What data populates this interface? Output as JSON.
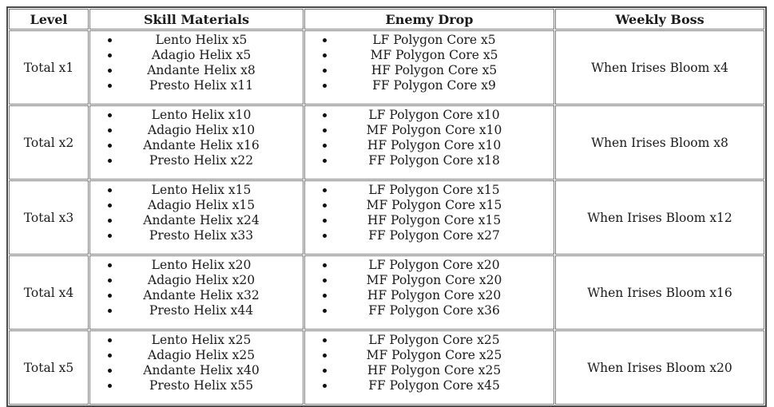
{
  "colors": {
    "background": "#ffffff",
    "text": "#1b1b1b",
    "border_outer": "#4a4a4a",
    "border_inner": "#7d7d7d",
    "bullet": "#111111"
  },
  "table": {
    "headers": [
      "Level",
      "Skill Materials",
      "Enemy Drop",
      "Weekly Boss"
    ],
    "rows": [
      {
        "level": "Total x1",
        "skill_materials": [
          "Lento Helix x5",
          "Adagio Helix x5",
          "Andante Helix x8",
          "Presto Helix x11"
        ],
        "enemy_drop": [
          "LF Polygon Core x5",
          "MF Polygon Core x5",
          "HF Polygon Core x5",
          "FF Polygon Core x9"
        ],
        "weekly_boss": "When Irises Bloom x4"
      },
      {
        "level": "Total x2",
        "skill_materials": [
          "Lento Helix x10",
          "Adagio Helix x10",
          "Andante Helix x16",
          "Presto Helix x22"
        ],
        "enemy_drop": [
          "LF Polygon Core x10",
          "MF Polygon Core x10",
          "HF Polygon Core x10",
          "FF Polygon Core x18"
        ],
        "weekly_boss": "When Irises Bloom x8"
      },
      {
        "level": "Total x3",
        "skill_materials": [
          "Lento Helix x15",
          "Adagio Helix x15",
          "Andante Helix x24",
          "Presto Helix x33"
        ],
        "enemy_drop": [
          "LF Polygon Core x15",
          "MF Polygon Core x15",
          "HF Polygon Core x15",
          "FF Polygon Core x27"
        ],
        "weekly_boss": "When Irises Bloom x12"
      },
      {
        "level": "Total x4",
        "skill_materials": [
          "Lento Helix x20",
          "Adagio Helix x20",
          "Andante Helix x32",
          "Presto Helix x44"
        ],
        "enemy_drop": [
          "LF Polygon Core x20",
          "MF Polygon Core x20",
          "HF Polygon Core x20",
          "FF Polygon Core x36"
        ],
        "weekly_boss": "When Irises Bloom x16"
      },
      {
        "level": "Total x5",
        "skill_materials": [
          "Lento Helix x25",
          "Adagio Helix x25",
          "Andante Helix x40",
          "Presto Helix x55"
        ],
        "enemy_drop": [
          "LF Polygon Core x25",
          "MF Polygon Core x25",
          "HF Polygon Core x25",
          "FF Polygon Core x45"
        ],
        "weekly_boss": "When Irises Bloom x20"
      }
    ]
  }
}
